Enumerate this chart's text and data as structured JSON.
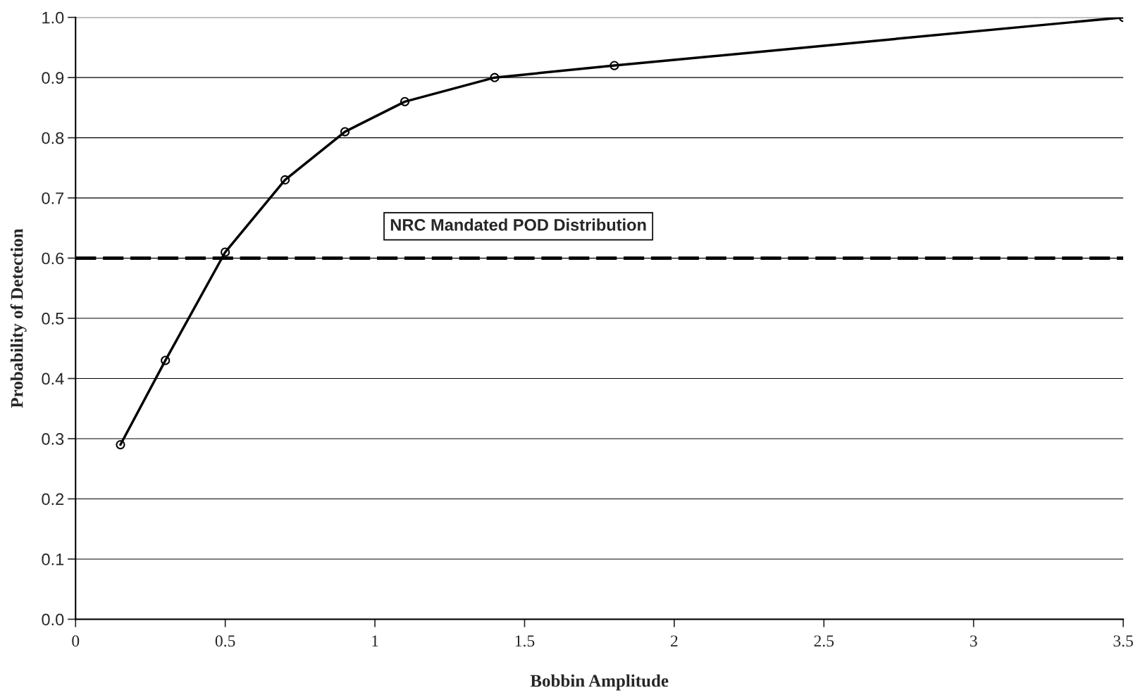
{
  "chart_data": {
    "type": "line",
    "xlabel": "Bobbin Amplitude",
    "ylabel": "Probability of Detection",
    "series": [
      {
        "color": "#000000",
        "x": [
          0.15,
          0.3,
          0.5,
          0.7,
          0.9,
          1.1,
          1.4,
          1.8,
          3.5
        ],
        "values": [
          0.29,
          0.43,
          0.61,
          0.73,
          0.81,
          0.86,
          0.9,
          0.92,
          1.0
        ]
      }
    ],
    "xlim": [
      0,
      3.5
    ],
    "xticks": [
      0,
      0.5,
      1,
      1.5,
      2,
      2.5,
      3,
      3.5
    ],
    "ylim": [
      0,
      1
    ],
    "yticks": [
      {
        "value": 0,
        "label": "0.0"
      },
      0.1,
      0.2,
      0.3,
      0.4,
      0.5,
      0.6,
      0.7,
      0.8,
      0.9,
      {
        "value": 1,
        "label": "1.0"
      }
    ],
    "ref_lines": [
      {
        "axis": "y",
        "value": 0.6,
        "label": "NRC Mandated POD Distribution",
        "color": "#000000",
        "line_style": "dashed"
      }
    ],
    "grid": "y",
    "marker": "circle",
    "line_style": "solid",
    "legend": false
  }
}
